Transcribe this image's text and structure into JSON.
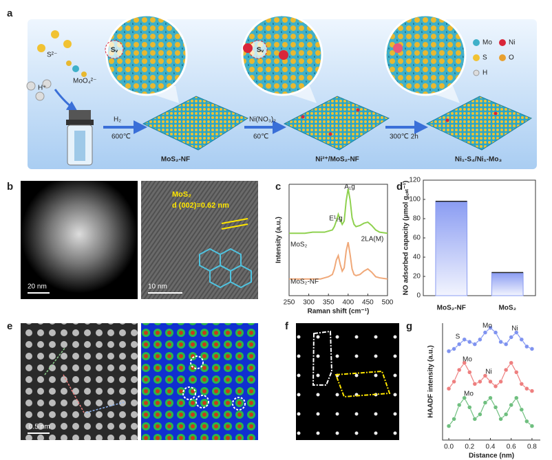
{
  "figure": {
    "panel_a": {
      "label": "a",
      "ions": {
        "sulfide": "S²⁻",
        "molybdate": "MoO₄²⁻",
        "proton": "H⁺"
      },
      "steps": [
        {
          "reagent": "H₂",
          "condition": "600℃",
          "product": "MoS₂-NF"
        },
        {
          "reagent": "Ni(NO₃)₂",
          "condition": "60℃",
          "product": "Ni²⁺/MoS₂-NF"
        },
        {
          "condition": "300℃  2h",
          "product": "Ni₁-S₄/Ni₁-Mo₃"
        }
      ],
      "vacancy_labels": [
        "Sᵥ",
        "Sᵥ"
      ],
      "legend": [
        "Mo",
        "Ni",
        "S",
        "O",
        "H"
      ]
    },
    "panel_b": {
      "label": "b",
      "scale_bars": [
        "20 nm",
        "10 nm"
      ],
      "material": "MoS₂",
      "spacing": "d (002)=0.62 nm"
    },
    "panel_e": {
      "label": "e",
      "scale_bar": "0.5 nm"
    },
    "panel_f": {
      "label": "f"
    }
  },
  "chart_data": [
    {
      "label": "c",
      "type": "line",
      "xlabel": "Raman shift (cm⁻¹)",
      "ylabel": "Intensity (a.u.)",
      "x": [
        250,
        270,
        290,
        310,
        330,
        340,
        350,
        360,
        365,
        370,
        375,
        380,
        385,
        390,
        395,
        400,
        405,
        410,
        415,
        420,
        430,
        440,
        450,
        460,
        470,
        480,
        500
      ],
      "xlim": [
        250,
        500
      ],
      "xticks": [
        250,
        300,
        350,
        400,
        450,
        500
      ],
      "ylim": [
        0,
        100
      ],
      "series": [
        {
          "name": "MoS₂",
          "color": "#8fd14f",
          "values": [
            56,
            56,
            56,
            57,
            57,
            57,
            58,
            59,
            62,
            67,
            73,
            68,
            64,
            67,
            85,
            96,
            86,
            70,
            64,
            62,
            63,
            65,
            66,
            63,
            59,
            57,
            56
          ]
        },
        {
          "name": "MoS₂-NF",
          "color": "#f0a878",
          "values": [
            15,
            15,
            15,
            15,
            15,
            16,
            17,
            19,
            24,
            32,
            36,
            28,
            22,
            25,
            40,
            48,
            37,
            24,
            19,
            18,
            19,
            22,
            24,
            21,
            17,
            16,
            15
          ]
        }
      ],
      "annotations": [
        "A₁g",
        "E¹₂g",
        "2LA(M)"
      ]
    },
    {
      "label": "d",
      "type": "bar",
      "ylabel": "NO adsorbed capacity (μmol g꜀ₐₜ⁻¹)",
      "categories": [
        "MoS₂-NF",
        "MoS₂"
      ],
      "values": [
        98,
        24
      ],
      "color": "#8a9cf2",
      "ylim": [
        0,
        120
      ],
      "yticks": [
        0,
        20,
        40,
        60,
        80,
        100,
        120
      ]
    },
    {
      "label": "g",
      "type": "line",
      "markers": true,
      "xlabel": "Distance (nm)",
      "ylabel": "HAADF intensity (a.u.)",
      "x": [
        0,
        0.05,
        0.1,
        0.15,
        0.2,
        0.25,
        0.3,
        0.35,
        0.4,
        0.45,
        0.5,
        0.55,
        0.6,
        0.65,
        0.7,
        0.75,
        0.8
      ],
      "xlim": [
        -0.06,
        0.88
      ],
      "xticks": [
        {
          "value": 0,
          "label": "0.0"
        },
        {
          "value": 0.2,
          "label": "0.2"
        },
        {
          "value": 0.4,
          "label": "0.4"
        },
        {
          "value": 0.6,
          "label": "0.6"
        },
        {
          "value": 0.8,
          "label": "0.8"
        }
      ],
      "ylim": [
        0,
        100
      ],
      "series": [
        {
          "color": "#7f93f0",
          "values": [
            76,
            78,
            82,
            86,
            84,
            82,
            86,
            92,
            96,
            92,
            84,
            82,
            88,
            92,
            86,
            80,
            78
          ]
        },
        {
          "color": "#ee7f7f",
          "values": [
            44,
            50,
            60,
            66,
            58,
            48,
            50,
            55,
            50,
            46,
            50,
            60,
            66,
            58,
            48,
            44,
            42
          ]
        },
        {
          "color": "#6fbf7f",
          "values": [
            12,
            18,
            30,
            36,
            28,
            18,
            22,
            32,
            36,
            28,
            18,
            22,
            30,
            36,
            26,
            16,
            12
          ]
        }
      ],
      "annotations": [
        "S",
        "Mo",
        "Ni",
        "Mo",
        "Ni",
        "Mo"
      ]
    }
  ]
}
